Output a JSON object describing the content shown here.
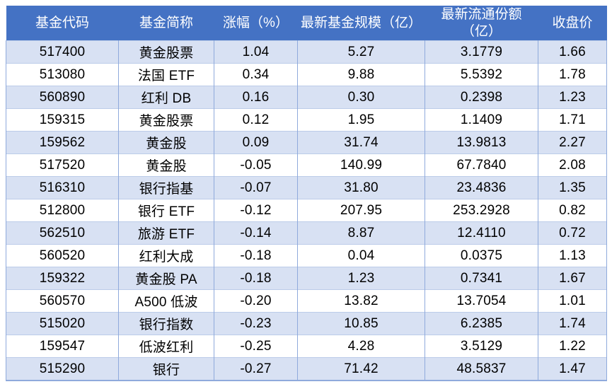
{
  "table": {
    "columns": [
      {
        "label": "基金代码"
      },
      {
        "label": "基金简称"
      },
      {
        "label": "涨幅（%）"
      },
      {
        "label": "最新基金规模（亿）"
      },
      {
        "label": "最新流通份额\n（亿）"
      },
      {
        "label": "收盘价"
      }
    ],
    "rows": [
      [
        "517400",
        "黄金股票",
        "1.04",
        "5.27",
        "3.1779",
        "1.66"
      ],
      [
        "513080",
        "法国 ETF",
        "0.34",
        "9.88",
        "5.5392",
        "1.78"
      ],
      [
        "560890",
        "红利 DB",
        "0.16",
        "0.30",
        "0.2398",
        "1.23"
      ],
      [
        "159315",
        "黄金股票",
        "0.12",
        "1.95",
        "1.1409",
        "1.71"
      ],
      [
        "159562",
        "黄金股",
        "0.09",
        "31.74",
        "13.9813",
        "2.27"
      ],
      [
        "517520",
        "黄金股",
        "-0.05",
        "140.99",
        "67.7840",
        "2.08"
      ],
      [
        "516310",
        "银行指基",
        "-0.07",
        "31.80",
        "23.4836",
        "1.35"
      ],
      [
        "512800",
        "银行 ETF",
        "-0.12",
        "207.95",
        "253.2928",
        "0.82"
      ],
      [
        "562510",
        "旅游 ETF",
        "-0.14",
        "8.87",
        "12.4110",
        "0.72"
      ],
      [
        "560520",
        "红利大成",
        "-0.18",
        "0.04",
        "0.0375",
        "1.13"
      ],
      [
        "159322",
        "黄金股 PA",
        "-0.18",
        "1.23",
        "0.7341",
        "1.67"
      ],
      [
        "560570",
        "A500 低波",
        "-0.20",
        "13.82",
        "13.7054",
        "1.01"
      ],
      [
        "515020",
        "银行指数",
        "-0.23",
        "10.85",
        "6.2385",
        "1.74"
      ],
      [
        "159547",
        "低波红利",
        "-0.25",
        "4.28",
        "3.5129",
        "1.22"
      ],
      [
        "515290",
        "银行",
        "-0.27",
        "71.42",
        "48.5837",
        "1.47"
      ]
    ],
    "colors": {
      "header_bg": "#4472C4",
      "header_text": "#FFFFFF",
      "band_row_bg": "#D8E1F3",
      "plain_row_bg": "#FFFFFF",
      "vertical_border": "#8FAADC",
      "horizontal_border": "#BCCCE9",
      "bottom_border": "#8FAADC",
      "cell_text": "#000000"
    }
  }
}
